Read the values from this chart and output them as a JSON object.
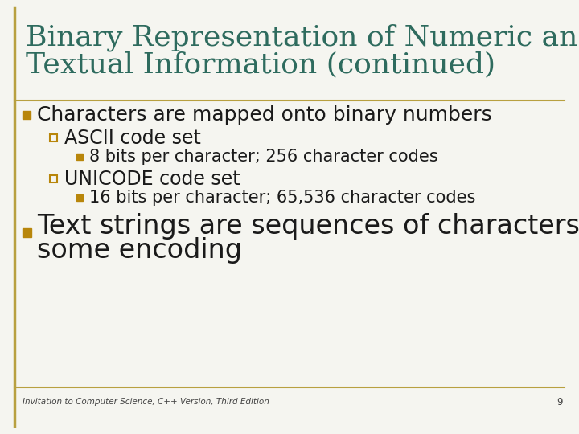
{
  "title_line1": "Binary Representation of Numeric and",
  "title_line2": "Textual Information (continued)",
  "title_color": "#2E6B5E",
  "background_color": "#F5F5F0",
  "border_color": "#B8A040",
  "body_text_color": "#1a1a1a",
  "footer_text": "Invitation to Computer Science, C++ Version, Third Edition",
  "footer_page": "9",
  "bullet_square_color": "#B8860B",
  "sub_square_color_open": "#B8860B",
  "bullet1_text": "Characters are mapped onto binary numbers",
  "sub1_text": "ASCII code set",
  "subsub1_text": "8 bits per character; 256 character codes",
  "sub2_text": "UNICODE code set",
  "subsub2_text": "16 bits per character; 65,536 character codes",
  "bullet2_text_line1": "Text strings are sequences of characters in",
  "bullet2_text_line2": "some encoding",
  "title_fontsize": 26,
  "bullet1_fontsize": 18,
  "sub_fontsize": 17,
  "subsub_fontsize": 15,
  "bullet2_fontsize": 24,
  "footer_fontsize": 7.5,
  "fig_width": 7.2,
  "fig_height": 5.4,
  "dpi": 100
}
